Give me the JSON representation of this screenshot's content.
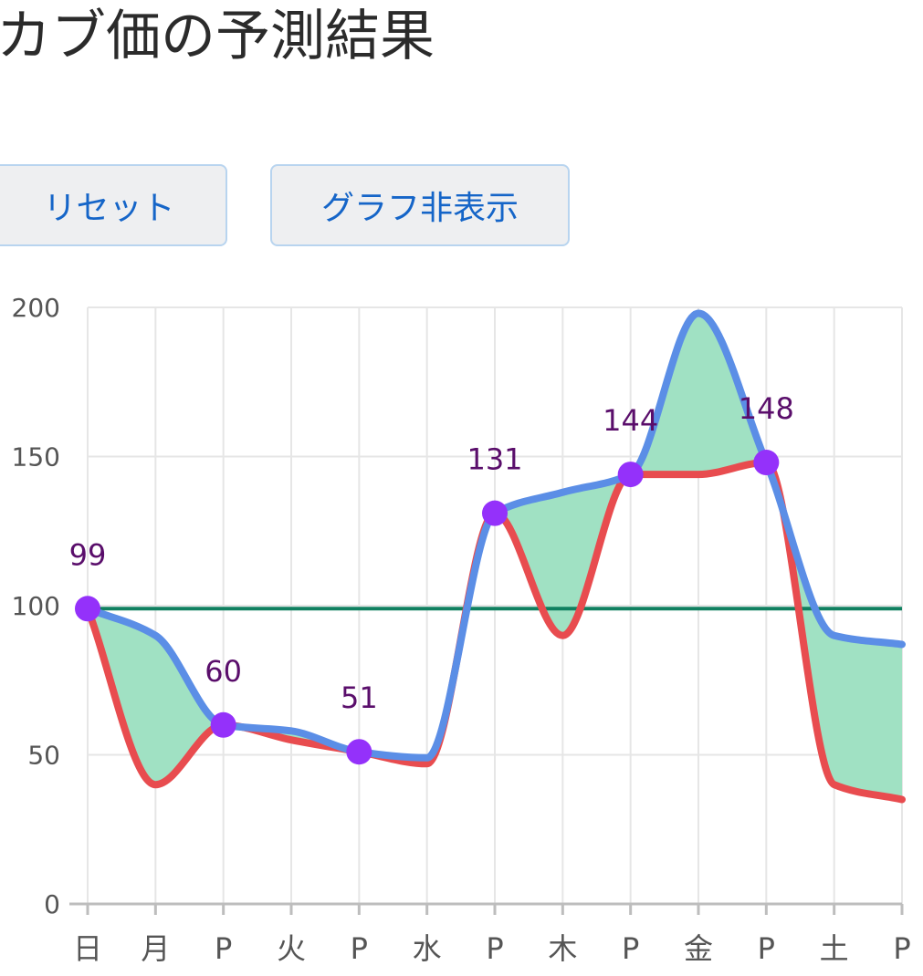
{
  "title": "カブ価の予測結果",
  "buttons": {
    "reset_label": "リセット",
    "toggle_graph_label": "グラフ非表示"
  },
  "chart_data": {
    "type": "line",
    "categories": [
      "日",
      "月",
      "P",
      "火",
      "P",
      "水",
      "P",
      "木",
      "P",
      "金",
      "P",
      "土",
      "P"
    ],
    "ylim": [
      0,
      200
    ],
    "yticks": [
      0,
      50,
      100,
      150,
      200
    ],
    "grid": true,
    "reference_line": 99,
    "series": [
      {
        "color": "#5b8ee6",
        "values": [
          99,
          90,
          60,
          58,
          51,
          49,
          131,
          138,
          144,
          198,
          148,
          90,
          87
        ]
      },
      {
        "color": "#e84c4f",
        "values": [
          99,
          40,
          60,
          55,
          51,
          47,
          131,
          90,
          144,
          144,
          148,
          40,
          35
        ]
      }
    ],
    "points": [
      {
        "x": "日",
        "index": 0,
        "value": 99,
        "label": "99"
      },
      {
        "x": "P",
        "index": 2,
        "value": 60,
        "label": "60"
      },
      {
        "x": "P",
        "index": 4,
        "value": 51,
        "label": "51"
      },
      {
        "x": "P",
        "index": 6,
        "value": 131,
        "label": "131"
      },
      {
        "x": "P",
        "index": 8,
        "value": 144,
        "label": "144"
      },
      {
        "x": "P",
        "index": 10,
        "value": 148,
        "label": "148"
      }
    ],
    "colors": {
      "fill_between": "#a0e1c3",
      "reference_line": "#108060",
      "point": "#9431fa",
      "label": "#5a0e6b",
      "grid": "#e6e6e6",
      "axis": "#bdbdbd"
    }
  }
}
